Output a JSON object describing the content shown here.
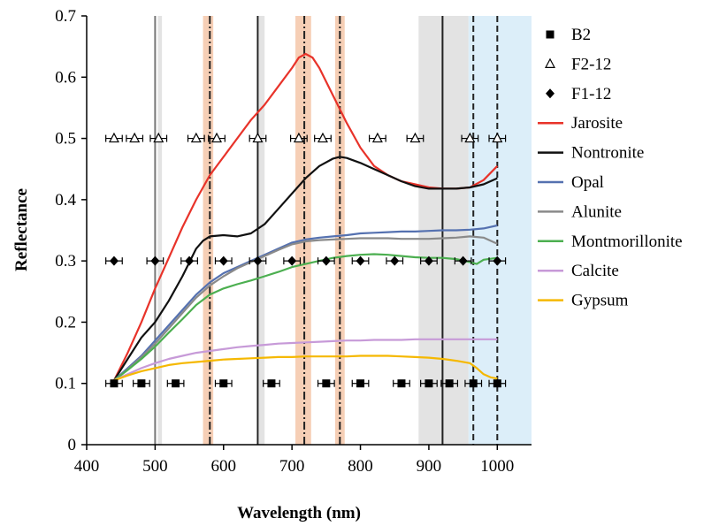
{
  "chart_data": {
    "type": "line",
    "xlabel": "Wavelength (nm)",
    "ylabel": "Reflectance",
    "xlim": [
      400,
      1050
    ],
    "ylim": [
      0,
      0.7
    ],
    "xticks": [
      "400",
      "500",
      "600",
      "700",
      "800",
      "900",
      "1000"
    ],
    "yticks": [
      "0",
      "0.1",
      "0.2",
      "0.3",
      "0.4",
      "0.5",
      "0.6",
      "0.7"
    ],
    "grid": false,
    "legend_position": "right",
    "bands": [
      {
        "kind": "gray",
        "from": 504,
        "to": 510
      },
      {
        "kind": "gray",
        "from": 652,
        "to": 660
      },
      {
        "kind": "gray",
        "from": 885,
        "to": 958
      },
      {
        "kind": "blue",
        "from": 958,
        "to": 1050
      },
      {
        "kind": "orange",
        "from": 570,
        "to": 585
      },
      {
        "kind": "orange",
        "from": 705,
        "to": 728
      },
      {
        "kind": "orange",
        "from": 763,
        "to": 777
      }
    ],
    "vlines": [
      {
        "style": "solid",
        "x": 500,
        "color": "#777777"
      },
      {
        "style": "solid",
        "x": 650,
        "color": "#222222"
      },
      {
        "style": "solid",
        "x": 920,
        "color": "#222222"
      },
      {
        "style": "dashdot",
        "x": 580,
        "color": "#222222"
      },
      {
        "style": "dashdot",
        "x": 718,
        "color": "#222222"
      },
      {
        "style": "dashdot",
        "x": 770,
        "color": "#222222"
      },
      {
        "style": "dashed",
        "x": 965,
        "color": "#222222"
      },
      {
        "style": "dashed",
        "x": 1000,
        "color": "#222222"
      }
    ],
    "series": [
      {
        "name": "Jarosite",
        "color": "#e8332a",
        "x": [
          440,
          460,
          480,
          500,
          520,
          540,
          560,
          580,
          600,
          620,
          640,
          660,
          680,
          700,
          710,
          720,
          730,
          740,
          760,
          780,
          800,
          820,
          840,
          860,
          880,
          900,
          920,
          940,
          960,
          980,
          1000
        ],
        "y": [
          0.105,
          0.15,
          0.2,
          0.255,
          0.305,
          0.355,
          0.4,
          0.44,
          0.47,
          0.5,
          0.53,
          0.555,
          0.585,
          0.615,
          0.632,
          0.638,
          0.632,
          0.615,
          0.57,
          0.525,
          0.485,
          0.455,
          0.44,
          0.43,
          0.425,
          0.42,
          0.418,
          0.418,
          0.42,
          0.432,
          0.455
        ]
      },
      {
        "name": "Nontronite",
        "color": "#111111",
        "x": [
          440,
          460,
          480,
          500,
          520,
          540,
          560,
          570,
          580,
          600,
          620,
          640,
          660,
          680,
          700,
          720,
          740,
          760,
          770,
          780,
          800,
          820,
          840,
          860,
          880,
          900,
          920,
          940,
          960,
          980,
          1000
        ],
        "y": [
          0.105,
          0.14,
          0.175,
          0.2,
          0.235,
          0.275,
          0.32,
          0.333,
          0.34,
          0.342,
          0.34,
          0.345,
          0.36,
          0.385,
          0.41,
          0.435,
          0.455,
          0.467,
          0.47,
          0.468,
          0.46,
          0.45,
          0.44,
          0.43,
          0.422,
          0.418,
          0.418,
          0.418,
          0.42,
          0.425,
          0.435
        ]
      },
      {
        "name": "Opal",
        "color": "#5571b0",
        "x": [
          440,
          460,
          480,
          500,
          520,
          540,
          560,
          580,
          600,
          620,
          640,
          660,
          680,
          700,
          720,
          740,
          760,
          780,
          800,
          820,
          840,
          860,
          880,
          900,
          920,
          940,
          960,
          980,
          1000
        ],
        "y": [
          0.105,
          0.125,
          0.145,
          0.17,
          0.195,
          0.22,
          0.245,
          0.265,
          0.28,
          0.29,
          0.3,
          0.31,
          0.32,
          0.33,
          0.335,
          0.338,
          0.34,
          0.342,
          0.345,
          0.346,
          0.347,
          0.348,
          0.348,
          0.349,
          0.35,
          0.35,
          0.351,
          0.353,
          0.358
        ]
      },
      {
        "name": "Alunite",
        "color": "#8a8a8a",
        "x": [
          440,
          460,
          480,
          500,
          520,
          540,
          560,
          580,
          600,
          620,
          640,
          660,
          680,
          700,
          720,
          740,
          760,
          780,
          800,
          820,
          840,
          860,
          880,
          900,
          920,
          940,
          960,
          980,
          1000
        ],
        "y": [
          0.105,
          0.123,
          0.143,
          0.165,
          0.19,
          0.215,
          0.24,
          0.26,
          0.275,
          0.288,
          0.298,
          0.308,
          0.318,
          0.327,
          0.332,
          0.334,
          0.335,
          0.336,
          0.337,
          0.337,
          0.337,
          0.336,
          0.336,
          0.336,
          0.337,
          0.338,
          0.34,
          0.338,
          0.328
        ]
      },
      {
        "name": "Montmorillonite",
        "color": "#4caf50",
        "x": [
          440,
          460,
          480,
          500,
          520,
          540,
          560,
          580,
          600,
          620,
          640,
          660,
          680,
          700,
          720,
          740,
          760,
          780,
          800,
          820,
          840,
          860,
          880,
          900,
          920,
          940,
          960,
          970,
          980,
          1000
        ],
        "y": [
          0.105,
          0.122,
          0.14,
          0.16,
          0.183,
          0.205,
          0.228,
          0.245,
          0.255,
          0.262,
          0.268,
          0.275,
          0.282,
          0.29,
          0.295,
          0.3,
          0.305,
          0.308,
          0.31,
          0.311,
          0.31,
          0.308,
          0.306,
          0.305,
          0.305,
          0.303,
          0.298,
          0.295,
          0.302,
          0.305
        ]
      },
      {
        "name": "Calcite",
        "color": "#c79ad8",
        "x": [
          440,
          460,
          480,
          500,
          520,
          540,
          560,
          580,
          600,
          620,
          640,
          660,
          680,
          700,
          720,
          740,
          760,
          780,
          800,
          820,
          840,
          860,
          880,
          900,
          920,
          940,
          960,
          980,
          1000
        ],
        "y": [
          0.105,
          0.115,
          0.125,
          0.133,
          0.14,
          0.145,
          0.15,
          0.153,
          0.156,
          0.159,
          0.161,
          0.163,
          0.165,
          0.166,
          0.167,
          0.168,
          0.169,
          0.17,
          0.17,
          0.171,
          0.171,
          0.171,
          0.172,
          0.172,
          0.172,
          0.172,
          0.172,
          0.172,
          0.172
        ]
      },
      {
        "name": "Gypsum",
        "color": "#f5b800",
        "x": [
          440,
          460,
          480,
          500,
          520,
          540,
          560,
          580,
          600,
          620,
          640,
          660,
          680,
          700,
          720,
          740,
          760,
          780,
          800,
          820,
          840,
          860,
          880,
          900,
          920,
          940,
          960,
          970,
          980,
          990,
          1000
        ],
        "y": [
          0.105,
          0.113,
          0.12,
          0.125,
          0.13,
          0.133,
          0.135,
          0.137,
          0.139,
          0.14,
          0.141,
          0.142,
          0.143,
          0.143,
          0.144,
          0.144,
          0.144,
          0.144,
          0.145,
          0.145,
          0.145,
          0.144,
          0.143,
          0.142,
          0.14,
          0.137,
          0.133,
          0.125,
          0.115,
          0.11,
          0.108
        ]
      }
    ],
    "markers": [
      {
        "name": "B2",
        "shape": "square",
        "y": 0.1,
        "x": [
          440,
          480,
          530,
          600,
          670,
          750,
          800,
          860,
          900,
          930,
          965,
          1000
        ],
        "err": 12
      },
      {
        "name": "F2-12",
        "shape": "triangle",
        "y": 0.5,
        "x": [
          440,
          470,
          505,
          560,
          590,
          650,
          710,
          745,
          825,
          880,
          960,
          1000
        ],
        "err": 12
      },
      {
        "name": "F1-12",
        "shape": "diamond",
        "y": 0.3,
        "x": [
          440,
          500,
          550,
          600,
          650,
          700,
          750,
          800,
          850,
          900,
          950,
          1000
        ],
        "err": 12
      }
    ],
    "legend": [
      {
        "label": "B2",
        "kind": "marker",
        "shape": "square"
      },
      {
        "label": "F2-12",
        "kind": "marker",
        "shape": "triangle"
      },
      {
        "label": "F1-12",
        "kind": "marker",
        "shape": "diamond"
      },
      {
        "label": "Jarosite",
        "kind": "line",
        "color": "#e8332a"
      },
      {
        "label": "Nontronite",
        "kind": "line",
        "color": "#111111"
      },
      {
        "label": "Opal",
        "kind": "line",
        "color": "#5571b0"
      },
      {
        "label": "Alunite",
        "kind": "line",
        "color": "#8a8a8a"
      },
      {
        "label": "Montmorillonite",
        "kind": "line",
        "color": "#4caf50"
      },
      {
        "label": "Calcite",
        "kind": "line",
        "color": "#c79ad8"
      },
      {
        "label": "Gypsum",
        "kind": "line",
        "color": "#f5b800"
      }
    ],
    "colors": {
      "band_gray": "#e3e3e3",
      "band_blue": "#dceef9",
      "band_orange": "#f6cfb6"
    }
  }
}
